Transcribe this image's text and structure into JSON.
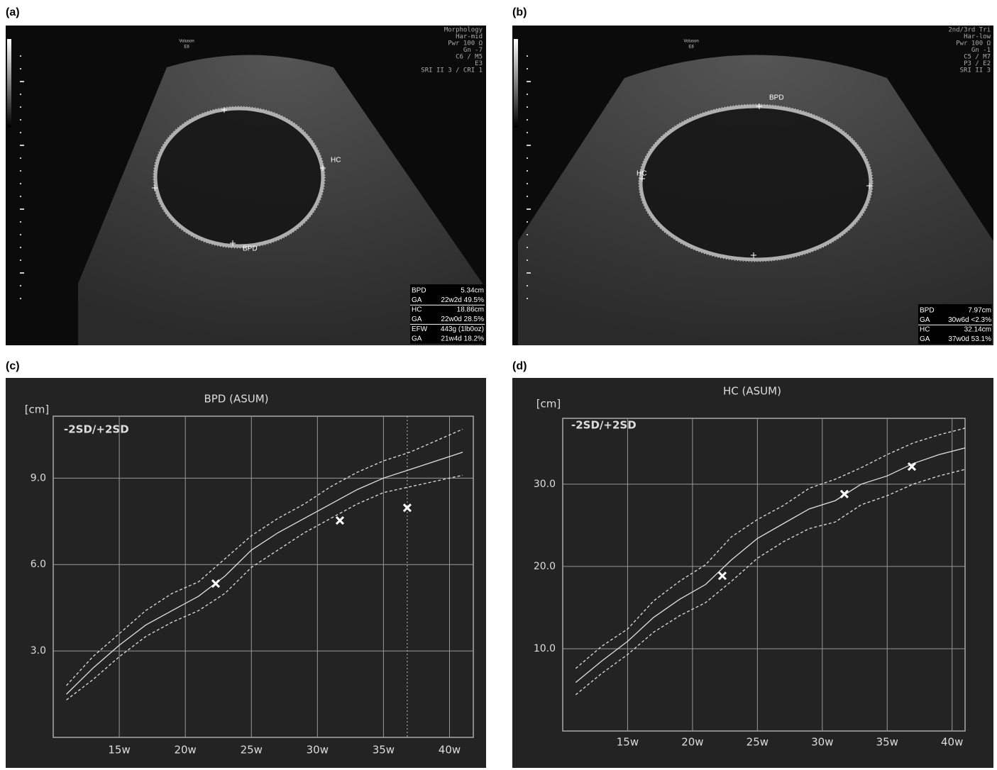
{
  "panels": [
    {
      "label": "(a)",
      "logo": [
        "Voluson",
        "E8"
      ],
      "settings": [
        "Morphology",
        "Har-mid",
        "Pwr 100 Ω",
        "Gn  -7",
        "C6 / M5",
        "E3",
        "SRI II 3 / CRI 1"
      ],
      "markers": [
        "HC",
        "BPD"
      ],
      "measurements": [
        [
          "BPD",
          "5.34cm"
        ],
        [
          "GA",
          "22w2d 49.5%"
        ],
        [
          "HC",
          "18.86cm"
        ],
        [
          "GA",
          "22w0d 28.5%"
        ],
        [
          "EFW",
          "443g (1lb0oz)"
        ],
        [
          "GA",
          "21w4d 18.2%"
        ]
      ]
    },
    {
      "label": "(b)",
      "logo": [
        "Voluson",
        "E8"
      ],
      "settings": [
        "2nd/3rd Tri",
        "Har-low",
        "Pwr 100 Ω",
        "Gn  -1",
        "C5 / M7",
        "P3 / E2",
        "SRI II 3"
      ],
      "markers": [
        "BPD",
        "HC"
      ],
      "measurements": [
        [
          "BPD",
          "7.97cm"
        ],
        [
          "GA",
          "30w6d <2.3%"
        ],
        [
          "HC",
          "32.14cm"
        ],
        [
          "GA",
          "37w0d 53.1%"
        ]
      ]
    }
  ],
  "chart_data": [
    {
      "type": "line",
      "label": "(c)",
      "title": "BPD (ASUM)",
      "ylabel": "[cm]",
      "legend_text": "-2SD/+2SD",
      "x": [
        11,
        13,
        15,
        17,
        19,
        21,
        23,
        25,
        27,
        29,
        31,
        33,
        35,
        37,
        39,
        41
      ],
      "series": [
        {
          "color": "#e0e0e0",
          "dashed": false,
          "values": [
            1.5,
            2.4,
            3.2,
            3.9,
            4.4,
            4.9,
            5.6,
            6.5,
            7.1,
            7.6,
            8.1,
            8.6,
            9.0,
            9.3,
            9.6,
            9.9
          ]
        },
        {
          "color": "#e0e0e0",
          "dashed": true,
          "values": [
            1.8,
            2.8,
            3.6,
            4.4,
            5.0,
            5.4,
            6.2,
            7.0,
            7.6,
            8.1,
            8.7,
            9.2,
            9.6,
            9.9,
            10.3,
            10.7
          ]
        },
        {
          "color": "#e0e0e0",
          "dashed": true,
          "values": [
            1.3,
            2.0,
            2.8,
            3.5,
            4.0,
            4.4,
            5.0,
            5.9,
            6.5,
            7.1,
            7.6,
            8.1,
            8.5,
            8.7,
            8.9,
            9.1
          ]
        }
      ],
      "points": {
        "x": [
          22.3,
          31.7,
          36.8
        ],
        "values": [
          5.34,
          7.53,
          7.97
        ],
        "color": "#ffffff"
      },
      "reference_x": 36.8,
      "xlim": [
        10,
        41.8
      ],
      "ylim": [
        0,
        11.15
      ],
      "xticks": [
        {
          "value": 15,
          "label": "15w"
        },
        {
          "value": 20,
          "label": "20w"
        },
        {
          "value": 25,
          "label": "25w"
        },
        {
          "value": 30,
          "label": "30w"
        },
        {
          "value": 35,
          "label": "35w"
        },
        {
          "value": 40,
          "label": "40w"
        }
      ],
      "yticks": [
        {
          "value": 3,
          "label": "3.0"
        },
        {
          "value": 6,
          "label": "6.0"
        },
        {
          "value": 9,
          "label": "9.0"
        }
      ],
      "grid": true
    },
    {
      "type": "line",
      "label": "(d)",
      "title": "HC (ASUM)",
      "ylabel": "[cm]",
      "legend_text": "-2SD/+2SD",
      "x": [
        11,
        13,
        15,
        17,
        19,
        21,
        23,
        25,
        27,
        29,
        31,
        33,
        35,
        37,
        39,
        41
      ],
      "series": [
        {
          "color": "#e0e0e0",
          "dashed": false,
          "values": [
            5.9,
            8.5,
            10.9,
            13.8,
            16.0,
            17.8,
            20.8,
            23.4,
            25.2,
            27.0,
            28.0,
            30.0,
            31.0,
            32.5,
            33.6,
            34.4
          ]
        },
        {
          "color": "#e0e0e0",
          "dashed": true,
          "values": [
            7.6,
            10.3,
            12.4,
            15.8,
            18.2,
            20.2,
            23.6,
            25.7,
            27.4,
            29.5,
            30.6,
            32.0,
            33.6,
            35.0,
            36.0,
            36.8
          ]
        },
        {
          "color": "#e0e0e0",
          "dashed": true,
          "values": [
            4.4,
            7.0,
            9.3,
            12.0,
            14.0,
            15.6,
            18.2,
            21.0,
            23.0,
            24.6,
            25.4,
            27.5,
            28.6,
            30.0,
            31.0,
            31.8
          ]
        }
      ],
      "points": {
        "x": [
          22.3,
          31.7,
          36.9
        ],
        "values": [
          18.86,
          28.8,
          32.14
        ],
        "color": "#ffffff"
      },
      "xlim": [
        10,
        41
      ],
      "ylim": [
        0,
        38
      ],
      "xticks": [
        {
          "value": 15,
          "label": "15w"
        },
        {
          "value": 20,
          "label": "20w"
        },
        {
          "value": 25,
          "label": "25w"
        },
        {
          "value": 30,
          "label": "30w"
        },
        {
          "value": 35,
          "label": "35w"
        },
        {
          "value": 40,
          "label": "40w"
        }
      ],
      "yticks": [
        {
          "value": 10,
          "label": "10.0"
        },
        {
          "value": 20,
          "label": "20.0"
        },
        {
          "value": 30,
          "label": "30.0"
        }
      ],
      "grid": true
    }
  ]
}
